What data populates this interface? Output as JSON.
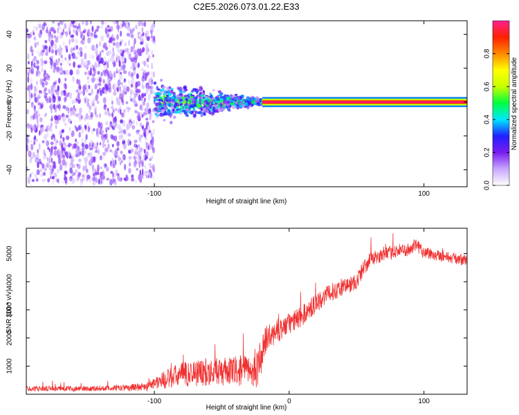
{
  "figure_title": "C2E5.2026.073.01.22.E33",
  "colors": {
    "background": "#ffffff",
    "axis": "#000000",
    "snr_line": "#f03030",
    "colorbar_stops": [
      "#ffffff",
      "#c8a6ff",
      "#7a1cf0",
      "#2020ff",
      "#00e8ff",
      "#00ff40",
      "#c8ff00",
      "#ffff00",
      "#ff8800",
      "#ff2000",
      "#ff2090"
    ]
  },
  "chart_data": [
    {
      "type": "heatmap",
      "title": "",
      "xlabel": "Height of straight line (km)",
      "ylabel": "Frequency (Hz)",
      "xlim": [
        -195,
        132
      ],
      "ylim": [
        -50,
        48
      ],
      "xticks": [
        -100,
        100
      ],
      "xtick_labels": [
        "-100",
        "100"
      ],
      "yticks": [
        -40,
        -20,
        0,
        20,
        40
      ],
      "ytick_labels": [
        "-40",
        "-20",
        "0",
        "20",
        "40"
      ],
      "colorbar": {
        "label": "Normalized spectral amplitude",
        "range": [
          0,
          1
        ],
        "ticks": [
          0.0,
          0.2,
          0.4,
          0.6,
          0.8
        ],
        "tick_labels": [
          "0.0",
          "0.2",
          "0.4",
          "0.6",
          "0.8"
        ]
      },
      "regions": [
        {
          "name": "broadband noise",
          "x": [
            -195,
            -100
          ],
          "freq_half_width_hz": 48,
          "amplitude": 0.15
        },
        {
          "name": "spreading signal",
          "x": [
            -100,
            -20
          ],
          "freq_half_width_hz_start": 12,
          "freq_half_width_hz_end": 2,
          "amplitude": 0.4
        },
        {
          "name": "carrier line",
          "x": [
            -20,
            132
          ],
          "freq_hz": 0,
          "amplitude": 1.0
        }
      ]
    },
    {
      "type": "line",
      "title": "",
      "xlabel": "Height of straight line (km)",
      "ylabel": "SNR (10 * v/v)",
      "xlim": [
        -195,
        132
      ],
      "ylim": [
        0,
        5900
      ],
      "xticks": [
        -100,
        0,
        100
      ],
      "xtick_labels": [
        "-100",
        "0",
        "100"
      ],
      "yticks": [
        1000,
        2000,
        3000,
        4000,
        5000
      ],
      "ytick_labels": [
        "1000",
        "2000",
        "3000",
        "4000",
        "5000"
      ],
      "series": [
        {
          "name": "SNR",
          "envelope_x": [
            -195,
            -150,
            -120,
            -105,
            -100,
            -90,
            -80,
            -60,
            -45,
            -35,
            -25,
            -22,
            -18,
            -10,
            0,
            10,
            20,
            30,
            40,
            50,
            55,
            60,
            70,
            80,
            90,
            95,
            100,
            110,
            120,
            132
          ],
          "envelope_mean": [
            200,
            200,
            230,
            280,
            400,
            550,
            700,
            800,
            800,
            850,
            800,
            1100,
            1900,
            2200,
            2500,
            2800,
            3250,
            3600,
            3800,
            4000,
            4450,
            4800,
            4950,
            5100,
            5150,
            5300,
            5050,
            4950,
            4850,
            4750
          ],
          "envelope_noise": [
            90,
            90,
            110,
            170,
            250,
            350,
            450,
            500,
            500,
            550,
            600,
            700,
            500,
            400,
            380,
            380,
            350,
            320,
            300,
            300,
            300,
            260,
            240,
            240,
            230,
            280,
            230,
            220,
            200,
            200
          ]
        }
      ]
    }
  ]
}
